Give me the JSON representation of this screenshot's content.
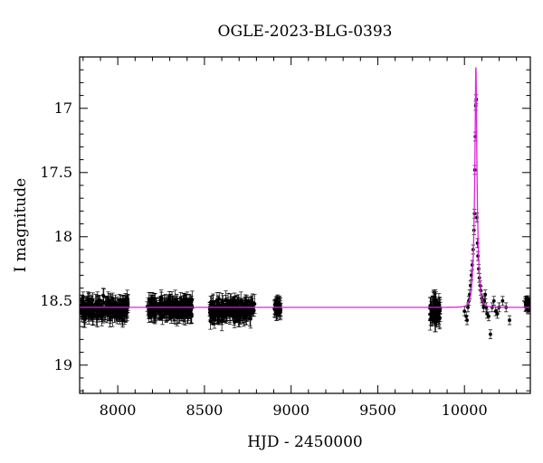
{
  "chart_data": {
    "type": "scatter",
    "title": "OGLE-2023-BLG-0393",
    "xlabel": "HJD - 2450000",
    "ylabel": "I magnitude",
    "xlim": [
      7780,
      10380
    ],
    "ylim": [
      19.22,
      16.6
    ],
    "y_inverted": true,
    "xticks": [
      8000,
      8500,
      9000,
      9500,
      10000
    ],
    "yticks": [
      17,
      17.5,
      18,
      18.5,
      19
    ],
    "xtick_labels": [
      "8000",
      "8500",
      "9000",
      "9500",
      "10000"
    ],
    "ytick_labels": [
      "17",
      "17.5",
      "18",
      "18.5",
      "19"
    ],
    "grid": false,
    "colors": {
      "data": "#000000",
      "model": "#e020e0",
      "axes": "#000000"
    },
    "baseline_magnitude": 18.55,
    "observing_seasons": [
      {
        "x_start": 7790,
        "x_end": 8060,
        "mean_mag": 18.56,
        "spread": 0.09,
        "error": 0.05
      },
      {
        "x_start": 8170,
        "x_end": 8430,
        "mean_mag": 18.56,
        "spread": 0.09,
        "error": 0.05
      },
      {
        "x_start": 8530,
        "x_end": 8790,
        "mean_mag": 18.57,
        "spread": 0.09,
        "error": 0.05
      },
      {
        "x_start": 8900,
        "x_end": 8940,
        "mean_mag": 18.55,
        "spread": 0.05,
        "error": 0.05
      },
      {
        "x_start": 9800,
        "x_end": 9860,
        "mean_mag": 18.58,
        "spread": 0.11,
        "error": 0.06
      },
      {
        "x_start": 10350,
        "x_end": 10378,
        "mean_mag": 18.52,
        "spread": 0.03,
        "error": 0.04
      }
    ],
    "event_points": [
      {
        "x": 10000,
        "y": 18.58
      },
      {
        "x": 10010,
        "y": 18.62
      },
      {
        "x": 10015,
        "y": 18.65
      },
      {
        "x": 10020,
        "y": 18.55
      },
      {
        "x": 10025,
        "y": 18.5
      },
      {
        "x": 10030,
        "y": 18.45
      },
      {
        "x": 10035,
        "y": 18.38
      },
      {
        "x": 10040,
        "y": 18.3
      },
      {
        "x": 10045,
        "y": 18.22
      },
      {
        "x": 10050,
        "y": 18.1
      },
      {
        "x": 10055,
        "y": 17.95
      },
      {
        "x": 10058,
        "y": 17.82
      },
      {
        "x": 10060,
        "y": 17.48
      },
      {
        "x": 10063,
        "y": 17.22
      },
      {
        "x": 10065,
        "y": 16.98
      },
      {
        "x": 10068,
        "y": 16.93
      },
      {
        "x": 10072,
        "y": 17.85
      },
      {
        "x": 10075,
        "y": 18.05
      },
      {
        "x": 10078,
        "y": 18.15
      },
      {
        "x": 10082,
        "y": 18.25
      },
      {
        "x": 10086,
        "y": 18.32
      },
      {
        "x": 10090,
        "y": 18.38
      },
      {
        "x": 10095,
        "y": 18.42
      },
      {
        "x": 10100,
        "y": 18.48
      },
      {
        "x": 10105,
        "y": 18.5
      },
      {
        "x": 10110,
        "y": 18.55
      },
      {
        "x": 10115,
        "y": 18.5
      },
      {
        "x": 10120,
        "y": 18.45
      },
      {
        "x": 10125,
        "y": 18.55
      },
      {
        "x": 10130,
        "y": 18.6
      },
      {
        "x": 10140,
        "y": 18.62
      },
      {
        "x": 10150,
        "y": 18.76
      },
      {
        "x": 10160,
        "y": 18.55
      },
      {
        "x": 10170,
        "y": 18.5
      },
      {
        "x": 10180,
        "y": 18.58
      },
      {
        "x": 10190,
        "y": 18.6
      },
      {
        "x": 10200,
        "y": 18.55
      },
      {
        "x": 10220,
        "y": 18.5
      },
      {
        "x": 10240,
        "y": 18.55
      },
      {
        "x": 10260,
        "y": 18.65
      }
    ],
    "model": {
      "name": "",
      "baseline": 18.55,
      "t0": 10066,
      "peak_magnitude": 16.68,
      "tE": 18,
      "u0": 0.0
    }
  }
}
